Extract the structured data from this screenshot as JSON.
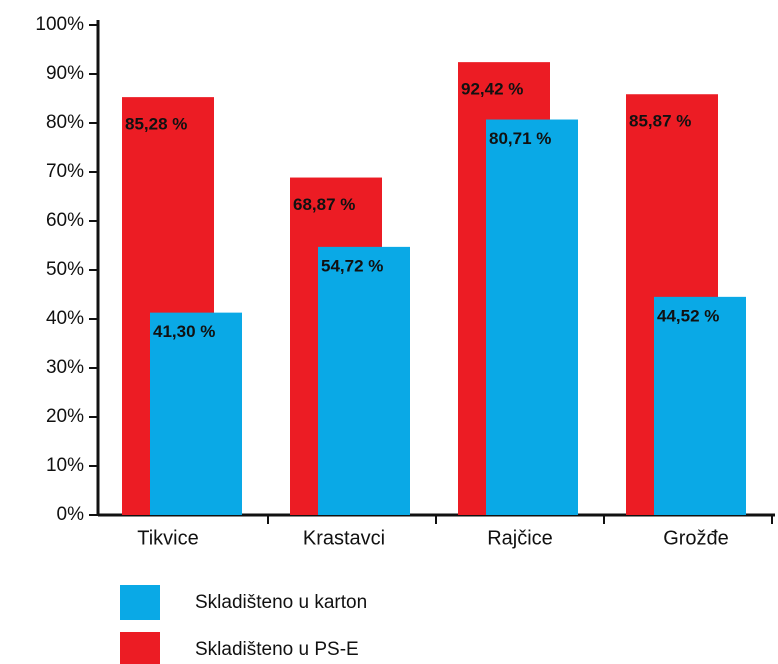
{
  "chart_data": {
    "type": "bar",
    "categories": [
      "Tikvice",
      "Krastavci",
      "Rajčice",
      "Grožđe"
    ],
    "series": [
      {
        "name": "Skladišteno u karton",
        "color": "#0aa9e6",
        "values": [
          41.3,
          54.72,
          80.71,
          44.52
        ],
        "value_labels": [
          "41,30 %",
          "54,72 %",
          "80,71 %",
          "44,52 %"
        ]
      },
      {
        "name": "Skladišteno u PS-E",
        "color": "#ec1c24",
        "values": [
          85.28,
          68.87,
          92.42,
          85.87
        ],
        "value_labels": [
          "85,28 %",
          "68,87 %",
          "92,42 %",
          "85,87 %"
        ]
      }
    ],
    "ylim": [
      0,
      100
    ],
    "yticks": [
      {
        "value": 0,
        "label": "0%"
      },
      {
        "value": 10,
        "label": "10%"
      },
      {
        "value": 20,
        "label": "20%"
      },
      {
        "value": 30,
        "label": "30%"
      },
      {
        "value": 40,
        "label": "40%"
      },
      {
        "value": 50,
        "label": "50%"
      },
      {
        "value": 60,
        "label": "60%"
      },
      {
        "value": 70,
        "label": "70%"
      },
      {
        "value": 80,
        "label": "80%"
      },
      {
        "value": 90,
        "label": "90%"
      },
      {
        "value": 100,
        "label": "100%"
      }
    ]
  }
}
